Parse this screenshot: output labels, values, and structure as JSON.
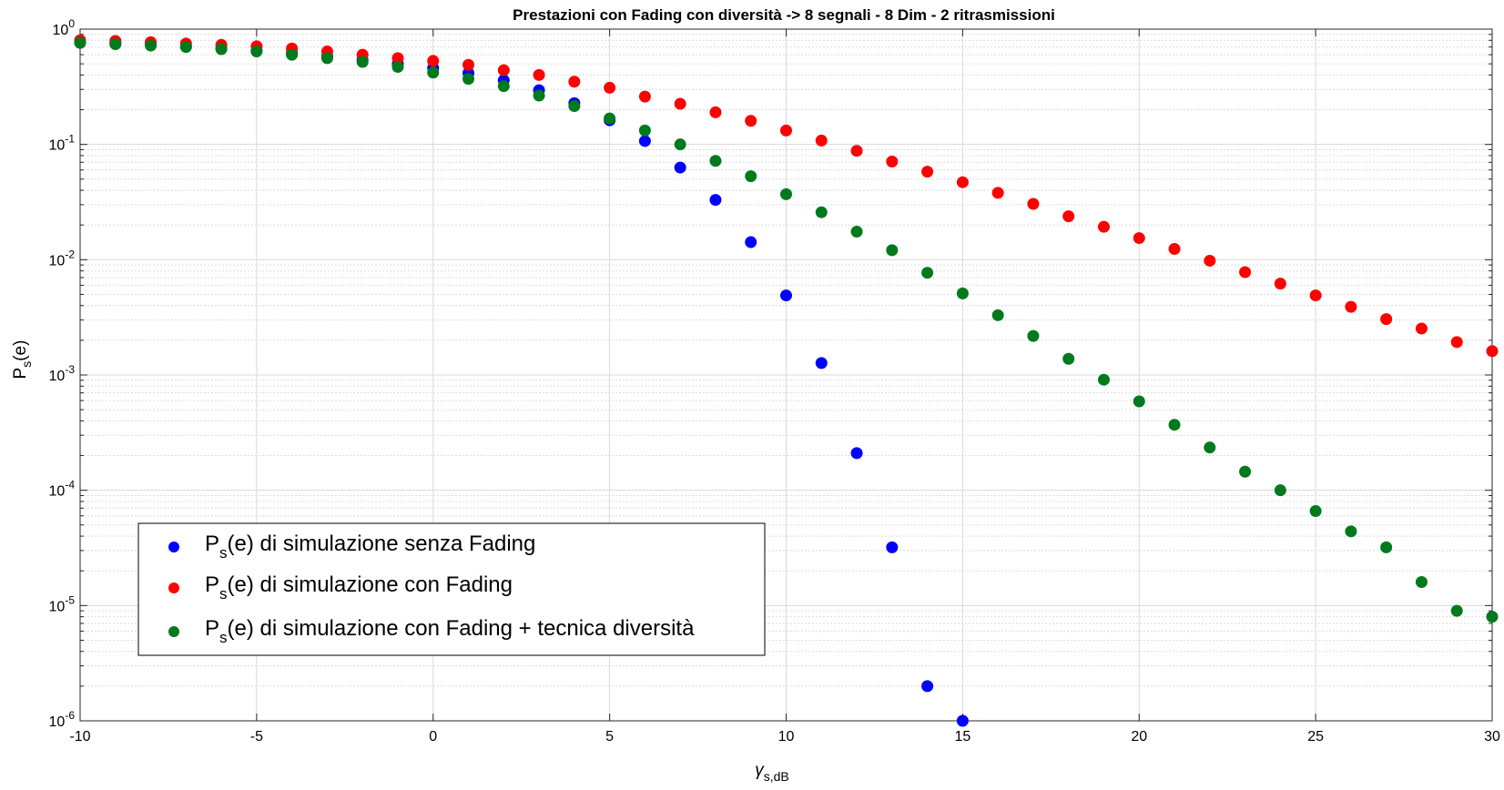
{
  "chart_data": {
    "type": "scatter",
    "title": "Prestazioni con Fading con diversità -> 8 segnali - 8 Dim - 2 ritrasmissioni",
    "xlabel": {
      "main": "γ",
      "sub": "s,dB"
    },
    "ylabel": {
      "main": "P",
      "sub": "s",
      "tail": "(e)"
    },
    "x_scale": "linear",
    "y_scale": "log",
    "xlim": [
      -10,
      30
    ],
    "ylim": [
      1e-06,
      1
    ],
    "x_ticks": [
      {
        "value": -10,
        "label": "-10"
      },
      {
        "value": -5,
        "label": "-5"
      },
      {
        "value": 0,
        "label": "0"
      },
      {
        "value": 5,
        "label": "5"
      },
      {
        "value": 10,
        "label": "10"
      },
      {
        "value": 15,
        "label": "15"
      },
      {
        "value": 20,
        "label": "20"
      },
      {
        "value": 25,
        "label": "25"
      },
      {
        "value": 30,
        "label": "30"
      }
    ],
    "y_ticks": [
      {
        "exp": 0,
        "base": "10",
        "sup": "0"
      },
      {
        "exp": -1,
        "base": "10",
        "sup": "-1"
      },
      {
        "exp": -2,
        "base": "10",
        "sup": "-2"
      },
      {
        "exp": -3,
        "base": "10",
        "sup": "-3"
      },
      {
        "exp": -4,
        "base": "10",
        "sup": "-4"
      },
      {
        "exp": -5,
        "base": "10",
        "sup": "-5"
      },
      {
        "exp": -6,
        "base": "10",
        "sup": "-6"
      }
    ],
    "grid": true,
    "minor_grid": true,
    "legend_position": "bottom-left",
    "series": [
      {
        "name": "P_s(e) di simulazione senza Fading",
        "legend": {
          "main": "P",
          "sub": "s",
          "rest": "(e) di simulazione senza Fading"
        },
        "color": "#0000ff",
        "x": [
          -10,
          -9,
          -8,
          -7,
          -6,
          -5,
          -4,
          -3,
          -2,
          -1,
          0,
          1,
          2,
          3,
          4,
          5,
          6,
          7,
          8,
          9,
          10,
          11,
          12,
          13,
          14,
          15
        ],
        "y": [
          0.78,
          0.76,
          0.74,
          0.71,
          0.68,
          0.65,
          0.62,
          0.58,
          0.54,
          0.5,
          0.46,
          0.415,
          0.36,
          0.295,
          0.228,
          0.162,
          0.107,
          0.063,
          0.033,
          0.0142,
          0.0049,
          0.00127,
          0.00021,
          3.2e-05,
          2e-06,
          1e-06
        ]
      },
      {
        "name": "P_s(e) di simulazione con Fading",
        "legend": {
          "main": "P",
          "sub": "s",
          "rest": "(e) di simulazione con Fading"
        },
        "color": "#ff0000",
        "x": [
          -10,
          -9,
          -8,
          -7,
          -6,
          -5,
          -4,
          -3,
          -2,
          -1,
          0,
          1,
          2,
          3,
          4,
          5,
          6,
          7,
          8,
          9,
          10,
          11,
          12,
          13,
          14,
          15,
          16,
          17,
          18,
          19,
          20,
          21,
          22,
          23,
          24,
          25,
          26,
          27,
          28,
          29,
          30
        ],
        "y": [
          0.8,
          0.79,
          0.77,
          0.75,
          0.73,
          0.71,
          0.68,
          0.64,
          0.6,
          0.56,
          0.53,
          0.49,
          0.44,
          0.4,
          0.35,
          0.31,
          0.26,
          0.225,
          0.19,
          0.16,
          0.132,
          0.108,
          0.088,
          0.071,
          0.058,
          0.047,
          0.038,
          0.0305,
          0.0238,
          0.0193,
          0.0154,
          0.0124,
          0.0098,
          0.0078,
          0.0062,
          0.0049,
          0.0039,
          0.00305,
          0.00253,
          0.00193,
          0.00161
        ]
      },
      {
        "name": "P_s(e) di simulazione con Fading + tecnica diversità",
        "legend": {
          "main": "P",
          "sub": "s",
          "rest": "(e) di simulazione con Fading + tecnica diversità"
        },
        "color": "#007a1c",
        "x": [
          -10,
          -9,
          -8,
          -7,
          -6,
          -5,
          -4,
          -3,
          -2,
          -1,
          0,
          1,
          2,
          3,
          4,
          5,
          6,
          7,
          8,
          9,
          10,
          11,
          12,
          13,
          14,
          15,
          16,
          17,
          18,
          19,
          20,
          21,
          22,
          23,
          24,
          25,
          26,
          27,
          28,
          29,
          30
        ],
        "y": [
          0.76,
          0.74,
          0.72,
          0.7,
          0.67,
          0.64,
          0.6,
          0.56,
          0.52,
          0.47,
          0.42,
          0.37,
          0.32,
          0.265,
          0.215,
          0.168,
          0.132,
          0.1,
          0.072,
          0.053,
          0.037,
          0.0258,
          0.0175,
          0.0121,
          0.0077,
          0.0051,
          0.0033,
          0.00218,
          0.00138,
          0.00091,
          0.00059,
          0.00037,
          0.000235,
          0.000145,
          0.0001,
          6.6e-05,
          4.4e-05,
          3.2e-05,
          1.6e-05,
          9e-06,
          8e-06
        ]
      }
    ]
  }
}
